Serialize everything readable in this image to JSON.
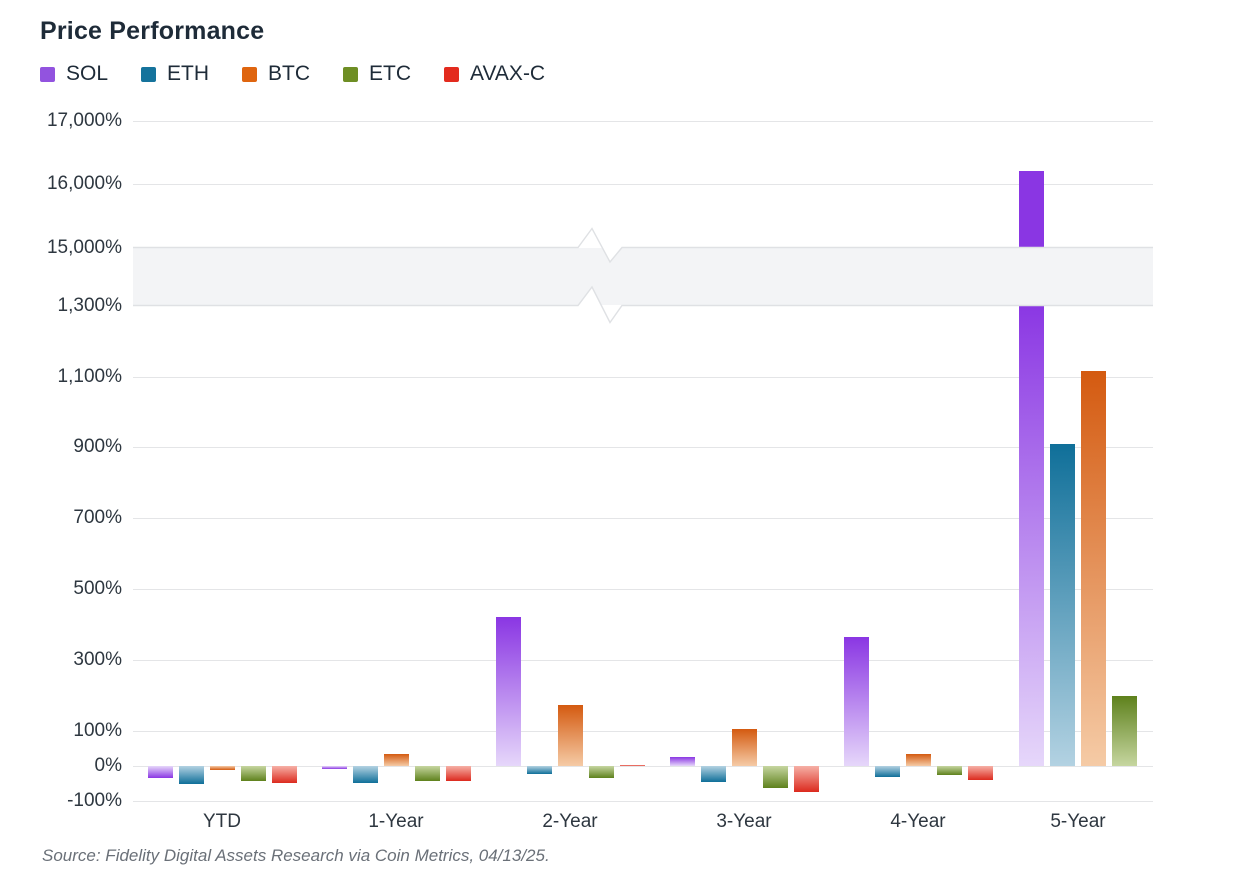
{
  "title": "Price Performance",
  "source": "Source: Fidelity Digital Assets Research via Coin Metrics, 04/13/25.",
  "legend": [
    {
      "label": "SOL",
      "color": "#9253df"
    },
    {
      "label": "ETH",
      "color": "#15739c"
    },
    {
      "label": "BTC",
      "color": "#df650f"
    },
    {
      "label": "ETC",
      "color": "#6e8e24"
    },
    {
      "label": "AVAX-C",
      "color": "#e32b1e"
    }
  ],
  "chart_data": {
    "type": "bar",
    "title": "Price Performance",
    "unit": "%",
    "categories": [
      "YTD",
      "1-Year",
      "2-Year",
      "3-Year",
      "4-Year",
      "5-Year"
    ],
    "series": [
      {
        "name": "SOL",
        "color_dark": "#8a36e3",
        "color_light": "#e6d7fa",
        "values": [
          -33,
          -7,
          420,
          25,
          365,
          16200
        ]
      },
      {
        "name": "ETH",
        "color_dark": "#0f6f99",
        "color_light": "#b3d2e2",
        "values": [
          -51,
          -48,
          -22,
          -45,
          -30,
          910
        ]
      },
      {
        "name": "BTC",
        "color_dark": "#d45a10",
        "color_light": "#f5cba6",
        "values": [
          -12,
          33,
          172,
          105,
          33,
          1115
        ]
      },
      {
        "name": "ETC",
        "color_dark": "#5e811c",
        "color_light": "#c6d6a0",
        "values": [
          -42,
          -43,
          -35,
          -62,
          -26,
          198
        ]
      },
      {
        "name": "AVAX-C",
        "color_dark": "#dc2a1e",
        "color_light": "#f6b0a6",
        "values": [
          -48,
          -43,
          3,
          -74,
          -40,
          null
        ]
      }
    ],
    "y_axis": {
      "tick_values_lower": [
        -100,
        0,
        100,
        300,
        500,
        700,
        900,
        1100,
        1300
      ],
      "tick_values_upper": [
        15000,
        16000,
        17000
      ],
      "gridline_values_lower": [
        -100,
        0,
        100,
        300,
        500,
        700,
        900,
        1100
      ],
      "gridline_values_upper": [
        16000,
        17000
      ],
      "break_between": [
        1300,
        15000
      ],
      "grid": true,
      "tick_suffix": "%"
    },
    "legend_position": "top-left",
    "axis_break": true
  }
}
